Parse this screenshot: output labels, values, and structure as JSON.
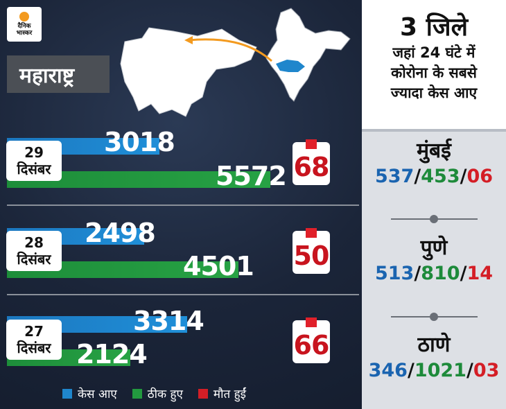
{
  "logo": {
    "line1": "दैनिक",
    "line2": "भास्कर"
  },
  "state": "महाराष्ट्र",
  "chart_data": {
    "type": "bar",
    "categories": [
      "29 दिसंबर",
      "28 दिसंबर",
      "27 दिसंबर"
    ],
    "series": [
      {
        "name": "केस आए",
        "values": [
          3018,
          2498,
          3314
        ],
        "color": "#1f86cc"
      },
      {
        "name": "ठीक हुए",
        "values": [
          5572,
          4501,
          2124
        ],
        "color": "#22993f"
      },
      {
        "name": "मौत हुईं",
        "values": [
          68,
          50,
          66
        ],
        "color": "#d41e26"
      }
    ],
    "rows": [
      {
        "day": "29",
        "month": "दिसंबर",
        "cases": "3018",
        "recovered": "5572",
        "deaths": "68"
      },
      {
        "day": "28",
        "month": "दिसंबर",
        "cases": "2498",
        "recovered": "4501",
        "deaths": "50"
      },
      {
        "day": "27",
        "month": "दिसंबर",
        "cases": "3314",
        "recovered": "2124",
        "deaths": "66"
      }
    ],
    "legend": [
      "केस आए",
      "ठीक हुए",
      "मौत हुईं"
    ],
    "legend_position": "bottom"
  },
  "panel": {
    "title": "3 जिले",
    "subtitle_lines": [
      "जहां 24 घंटे में",
      "कोरोना के सबसे",
      "ज्यादा केस आए"
    ],
    "districts": [
      {
        "name": "मुंबई",
        "cases": "537",
        "recovered": "453",
        "deaths": "06"
      },
      {
        "name": "पुणे",
        "cases": "513",
        "recovered": "810",
        "deaths": "14"
      },
      {
        "name": "ठाणे",
        "cases": "346",
        "recovered": "1021",
        "deaths": "03"
      }
    ],
    "separator": "/"
  }
}
